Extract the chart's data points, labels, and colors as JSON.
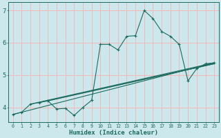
{
  "xlabel": "Humidex (Indice chaleur)",
  "bg_color": "#cce8ec",
  "line_color": "#1a6b5e",
  "grid_color": "#f5b8b8",
  "xlim": [
    -0.5,
    23.5
  ],
  "ylim": [
    3.55,
    7.25
  ],
  "yticks": [
    4,
    5,
    6,
    7
  ],
  "xticks": [
    0,
    1,
    2,
    3,
    4,
    5,
    6,
    7,
    8,
    9,
    10,
    11,
    12,
    13,
    14,
    15,
    16,
    17,
    18,
    19,
    20,
    21,
    22,
    23
  ],
  "series": [
    [
      0,
      3.78
    ],
    [
      1,
      3.85
    ],
    [
      2,
      4.1
    ],
    [
      3,
      4.15
    ],
    [
      4,
      4.2
    ],
    [
      5,
      3.95
    ],
    [
      6,
      3.97
    ],
    [
      7,
      3.75
    ],
    [
      8,
      4.0
    ],
    [
      9,
      4.22
    ],
    [
      10,
      5.95
    ],
    [
      11,
      5.95
    ],
    [
      12,
      5.78
    ],
    [
      13,
      6.2
    ],
    [
      14,
      6.22
    ],
    [
      15,
      7.0
    ],
    [
      16,
      6.75
    ],
    [
      17,
      6.35
    ],
    [
      18,
      6.2
    ],
    [
      19,
      5.95
    ],
    [
      20,
      4.82
    ],
    [
      21,
      5.2
    ],
    [
      22,
      5.35
    ],
    [
      23,
      5.38
    ]
  ],
  "linear_lines": [
    [
      [
        0,
        3.78
      ],
      [
        23,
        5.38
      ]
    ],
    [
      [
        2,
        4.1
      ],
      [
        23,
        5.38
      ]
    ],
    [
      [
        3,
        4.15
      ],
      [
        23,
        5.35
      ]
    ],
    [
      [
        4,
        4.2
      ],
      [
        23,
        5.35
      ]
    ]
  ]
}
